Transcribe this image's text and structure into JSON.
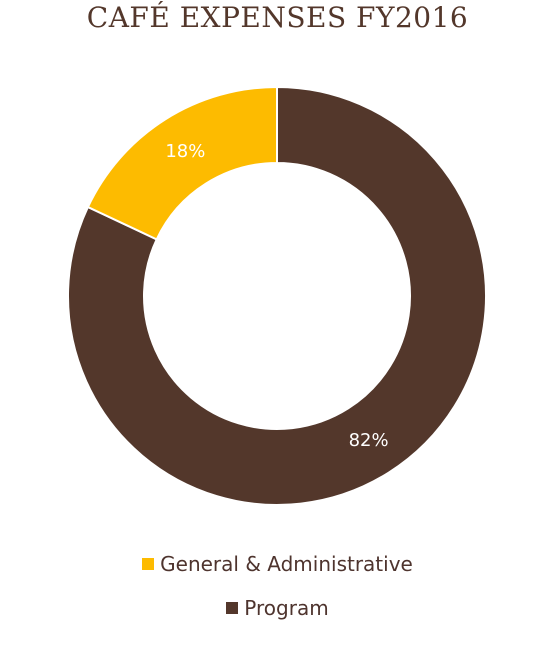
{
  "chart_data": {
    "type": "pie",
    "title": "CAFÉ EXPENSES FY2016",
    "donut": true,
    "categories": [
      "Program",
      "General & Administrative"
    ],
    "values": [
      82,
      18
    ],
    "value_labels": [
      "82%",
      "18%"
    ],
    "colors": [
      "#53372b",
      "#fdbb00"
    ],
    "legend": {
      "placement": "bottom",
      "entries": [
        {
          "label": "General & Administrative",
          "color": "#fdbb00"
        },
        {
          "label": "Program",
          "color": "#53372b"
        }
      ]
    }
  }
}
